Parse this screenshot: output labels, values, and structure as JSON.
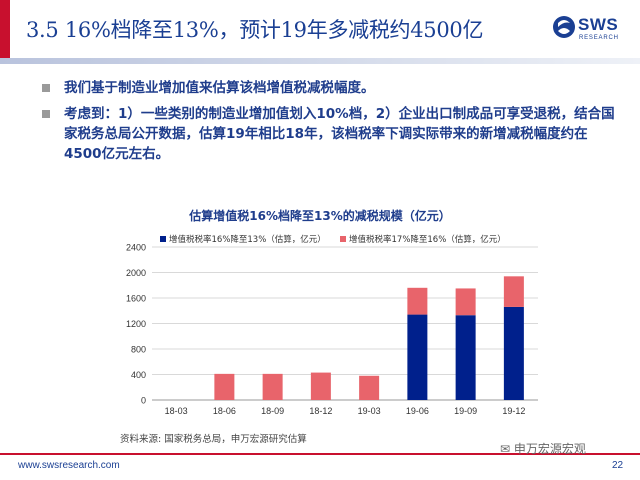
{
  "slide": {
    "title": "3.5 16%档降至13%，预计19年多减税约4500亿",
    "page_number": "22",
    "footer_url": "www.swsresearch.com",
    "watermark": "申万宏源宏观"
  },
  "logo": {
    "word": "SWS",
    "sub": "RESEARCH",
    "color": "#1a3f93"
  },
  "bullets": [
    "我们基于制造业增加值来估算该档增值税减税幅度。",
    "考虑到：1）一些类别的制造业增加值划入10%档，2）企业出口制成品可享受退税，结合国家税务总局公开数据，估算19年相比18年，该档税率下调实际带来的新增减税幅度约在4500亿元左右。"
  ],
  "chart_data": {
    "type": "bar",
    "stacked": true,
    "title": "估算增值税16%档降至13%的减税规模（亿元）",
    "categories": [
      "18-03",
      "18-06",
      "18-09",
      "18-12",
      "19-03",
      "19-06",
      "19-09",
      "19-12"
    ],
    "series": [
      {
        "name": "增值税税率16%降至13%（估算，亿元）",
        "color": "#00208c",
        "values": [
          0,
          0,
          0,
          0,
          0,
          1340,
          1330,
          1460
        ]
      },
      {
        "name": "增值税税率17%降至16%（估算，亿元）",
        "color": "#e8646b",
        "values": [
          0,
          410,
          410,
          430,
          380,
          420,
          420,
          480
        ]
      }
    ],
    "ylim": [
      0,
      2400
    ],
    "yticks": [
      0,
      400,
      800,
      1200,
      1600,
      2000,
      2400
    ],
    "grid": true,
    "legend": "top"
  },
  "source": "资料来源: 国家税务总局，申万宏源研究估算"
}
